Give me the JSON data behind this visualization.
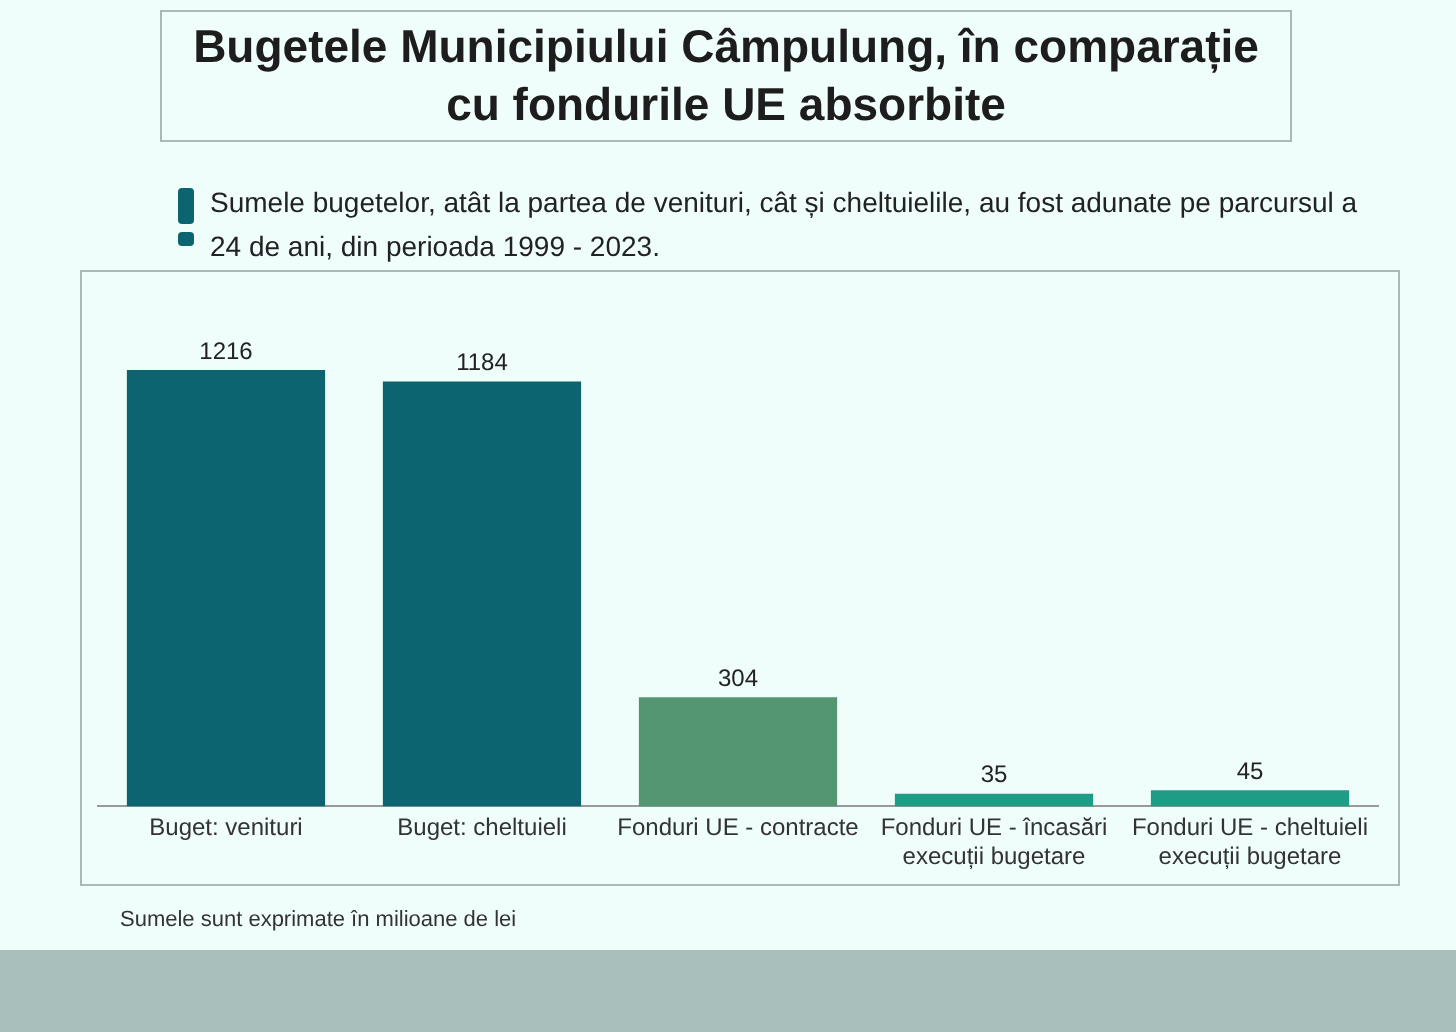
{
  "chart_data": {
    "type": "bar",
    "title": "Bugetele Municipiului Câmpulung, în comparație cu fondurile UE absorbite",
    "subtitle": "Sumele bugetelor, atât la partea de venituri, cât și cheltuielile, au fost adunate pe parcursul a 24 de ani, din perioada 1999 - 2023.",
    "categories": [
      "Buget: venituri",
      "Buget: cheltuieli",
      "Fonduri UE - contracte",
      "Fonduri UE - încasări execuții bugetare",
      "Fonduri UE - cheltuieli execuții bugetare"
    ],
    "values": [
      1216,
      1184,
      304,
      35,
      45
    ],
    "colors": [
      "#0b6470",
      "#0b6470",
      "#559672",
      "#1e9c86",
      "#1e9c86"
    ],
    "data_labels": true,
    "grid": false,
    "legend": false,
    "tick_labels": "x",
    "annotations": [
      "Sumele sunt exprimate în milioane de lei"
    ]
  }
}
